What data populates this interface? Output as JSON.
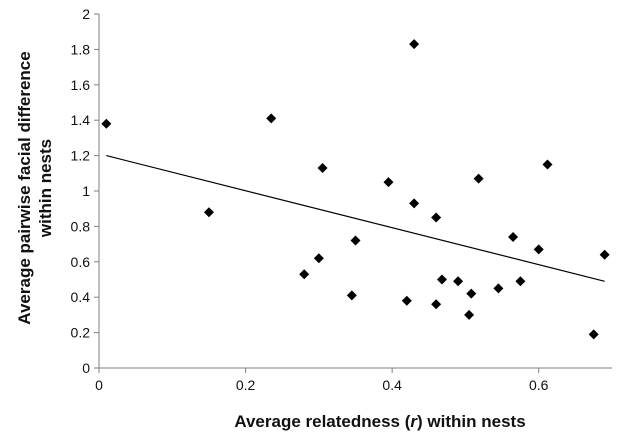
{
  "chart_data": {
    "type": "scatter",
    "xlabel_parts": [
      "Average relatedness (",
      "r",
      ") within nests"
    ],
    "ylabel_lines": [
      "Average pairwise facial difference",
      "within nests"
    ],
    "xlim": [
      0,
      0.7
    ],
    "ylim": [
      0,
      2
    ],
    "x_ticks": [
      {
        "value": 0,
        "label": "0"
      },
      {
        "value": 0.2,
        "label": "0.2"
      },
      {
        "value": 0.4,
        "label": "0.4"
      },
      {
        "value": 0.6,
        "label": "0.6"
      }
    ],
    "y_ticks": [
      {
        "value": 0,
        "label": "0"
      },
      {
        "value": 0.2,
        "label": "0.2"
      },
      {
        "value": 0.4,
        "label": "0.4"
      },
      {
        "value": 0.6,
        "label": "0.6"
      },
      {
        "value": 0.8,
        "label": "0.8"
      },
      {
        "value": 1,
        "label": "1"
      },
      {
        "value": 1.2,
        "label": "1.2"
      },
      {
        "value": 1.4,
        "label": "1.4"
      },
      {
        "value": 1.6,
        "label": "1.6"
      },
      {
        "value": 1.8,
        "label": "1.8"
      },
      {
        "value": 2,
        "label": "2"
      }
    ],
    "grid": false,
    "marker": "diamond",
    "marker_color": "#000000",
    "points": [
      {
        "x": 0.01,
        "y": 1.38
      },
      {
        "x": 0.15,
        "y": 0.88
      },
      {
        "x": 0.235,
        "y": 1.41
      },
      {
        "x": 0.28,
        "y": 0.53
      },
      {
        "x": 0.3,
        "y": 0.62
      },
      {
        "x": 0.305,
        "y": 1.13
      },
      {
        "x": 0.345,
        "y": 0.41
      },
      {
        "x": 0.35,
        "y": 0.72
      },
      {
        "x": 0.395,
        "y": 1.05
      },
      {
        "x": 0.42,
        "y": 0.38
      },
      {
        "x": 0.43,
        "y": 1.83
      },
      {
        "x": 0.43,
        "y": 0.93
      },
      {
        "x": 0.46,
        "y": 0.85
      },
      {
        "x": 0.46,
        "y": 0.36
      },
      {
        "x": 0.468,
        "y": 0.5
      },
      {
        "x": 0.49,
        "y": 0.49
      },
      {
        "x": 0.505,
        "y": 0.3
      },
      {
        "x": 0.508,
        "y": 0.42
      },
      {
        "x": 0.518,
        "y": 1.07
      },
      {
        "x": 0.545,
        "y": 0.45
      },
      {
        "x": 0.565,
        "y": 0.74
      },
      {
        "x": 0.575,
        "y": 0.49
      },
      {
        "x": 0.6,
        "y": 0.67
      },
      {
        "x": 0.612,
        "y": 1.15
      },
      {
        "x": 0.675,
        "y": 0.19
      },
      {
        "x": 0.69,
        "y": 0.64
      }
    ],
    "trendline": {
      "x": [
        0.01,
        0.69
      ],
      "y": [
        1.2,
        0.49
      ]
    },
    "trendline_color": "#000000"
  }
}
